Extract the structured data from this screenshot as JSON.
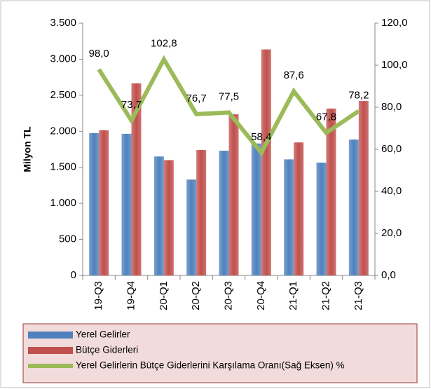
{
  "chart_data": {
    "type": "bar_line",
    "categories": [
      "19-Q3",
      "19-Q4",
      "20-Q1",
      "20-Q2",
      "20-Q3",
      "20-Q4",
      "21-Q1",
      "21-Q2",
      "21-Q3"
    ],
    "ylabel": "Milyon TL",
    "ylim": [
      0,
      3500
    ],
    "yticks": [
      {
        "value": 0,
        "label": "0"
      },
      {
        "value": 500,
        "label": "500"
      },
      {
        "value": 1000,
        "label": "1.000"
      },
      {
        "value": 1500,
        "label": "1.500"
      },
      {
        "value": 2000,
        "label": "2.000"
      },
      {
        "value": 2500,
        "label": "2.500"
      },
      {
        "value": 3000,
        "label": "3.000"
      },
      {
        "value": 3500,
        "label": "3.500"
      }
    ],
    "y2lim": [
      0,
      120
    ],
    "y2ticks": [
      {
        "value": 0,
        "label": "0,0"
      },
      {
        "value": 20,
        "label": "20,0"
      },
      {
        "value": 40,
        "label": "40,0"
      },
      {
        "value": 60,
        "label": "60,0"
      },
      {
        "value": 80,
        "label": "80,0"
      },
      {
        "value": 100,
        "label": "100,0"
      },
      {
        "value": 120,
        "label": "120,0"
      }
    ],
    "legend": "bottom",
    "series": [
      {
        "name": "Yerel Gelirler",
        "type": "bar",
        "color": "#4f81bd",
        "values": [
          1975,
          1965,
          1650,
          1330,
          1730,
          1830,
          1610,
          1565,
          1885
        ]
      },
      {
        "name": "Bütçe Giderleri",
        "type": "bar",
        "color": "#c0504d",
        "values": [
          2015,
          2665,
          1600,
          1740,
          2235,
          3135,
          1845,
          2315,
          2420
        ]
      },
      {
        "name": "Yerel Gelirlerin Bütçe Giderlerini Karşılama Oranı(Sağ Eksen) %",
        "type": "line",
        "axis": "y2",
        "color": "#9bbb59",
        "values": [
          98.0,
          73.7,
          102.8,
          76.7,
          77.5,
          58.4,
          87.6,
          67.8,
          78.2
        ],
        "value_labels": [
          "98,0",
          "73,7",
          "102,8",
          "76,7",
          "77,5",
          "58,4",
          "87,6",
          "67,8",
          "78,2"
        ]
      }
    ]
  }
}
